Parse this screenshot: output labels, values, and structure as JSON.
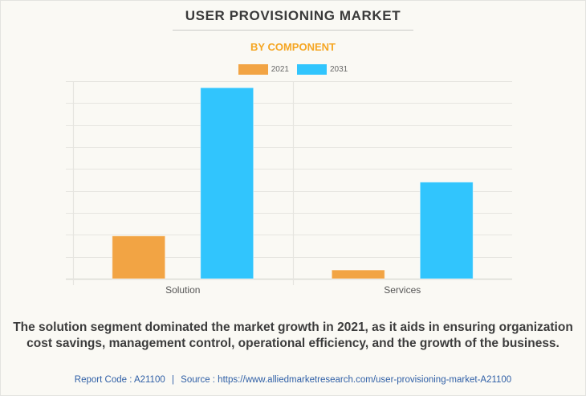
{
  "header": {
    "title": "USER PROVISIONING MARKET",
    "subtitle": "BY COMPONENT"
  },
  "colors": {
    "series_2021": "#f2a444",
    "series_2031": "#31c5fd",
    "subtitle": "#f5a623",
    "grid": "#e6e5e0",
    "footer_link": "#2f5fa6"
  },
  "chart_data": {
    "type": "bar",
    "title": "USER PROVISIONING MARKET",
    "subtitle": "BY COMPONENT",
    "categories": [
      "Solution",
      "Services"
    ],
    "series": [
      {
        "name": "2021",
        "color": "#f2a444",
        "values": [
          1.95,
          0.4
        ]
      },
      {
        "name": "2031",
        "color": "#31c5fd",
        "values": [
          8.7,
          4.4
        ]
      }
    ],
    "xlabel": "",
    "ylabel": "",
    "ylim": [
      0,
      9
    ],
    "y_ticks_labeled": false,
    "grid": true,
    "legend_position": "top-center",
    "value_units": "relative (gridline units, axis unlabeled)"
  },
  "caption": "The solution segment dominated the market growth in 2021, as it aids in ensuring organization cost savings, management control, operational efficiency, and the growth of the business.",
  "footer": {
    "report_code_label": "Report Code : A21100",
    "separator": "|",
    "source_label": "Source : https://www.alliedmarketresearch.com/user-provisioning-market-A21100"
  }
}
